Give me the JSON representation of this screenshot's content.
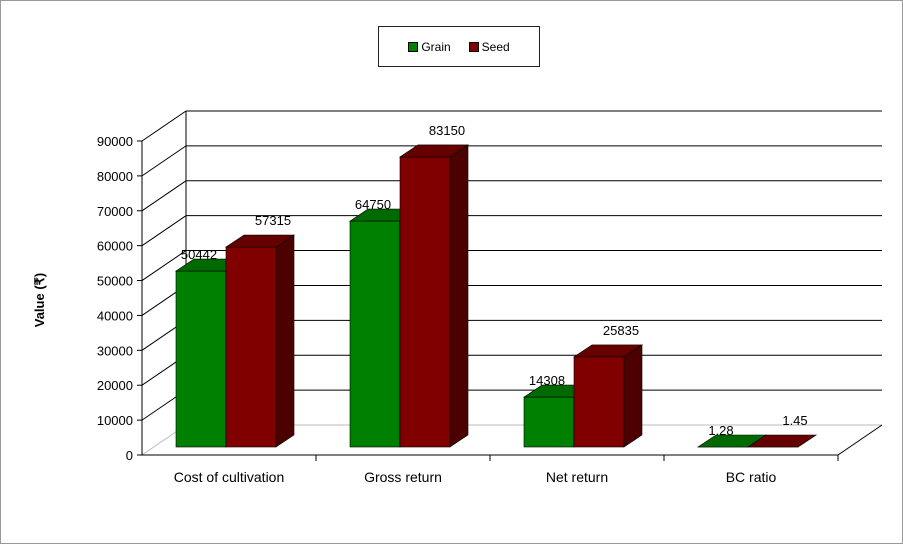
{
  "chart_data": {
    "type": "bar",
    "title": "",
    "xlabel": "",
    "ylabel": "Value (₹)",
    "ylim": [
      0,
      90000
    ],
    "yticks": [
      0,
      10000,
      20000,
      30000,
      40000,
      50000,
      60000,
      70000,
      80000,
      90000
    ],
    "categories": [
      "Cost of cultivation",
      "Gross return",
      "Net return",
      "BC ratio"
    ],
    "series": [
      {
        "name": "Grain",
        "values": [
          50442,
          64750,
          14308,
          1.28
        ],
        "labels": [
          "50442",
          "64750",
          "14308",
          "1.28"
        ],
        "color": "#008000",
        "side_color": "#005400",
        "top_color": "#006a00"
      },
      {
        "name": "Seed",
        "values": [
          57315,
          83150,
          25835,
          1.45
        ],
        "labels": [
          "57315",
          "83150",
          "25835",
          "1.45"
        ],
        "color": "#800000",
        "side_color": "#4d0000",
        "top_color": "#660000"
      }
    ],
    "grid": true,
    "legend_position": "top-center",
    "style": "3d-clustered-column"
  }
}
